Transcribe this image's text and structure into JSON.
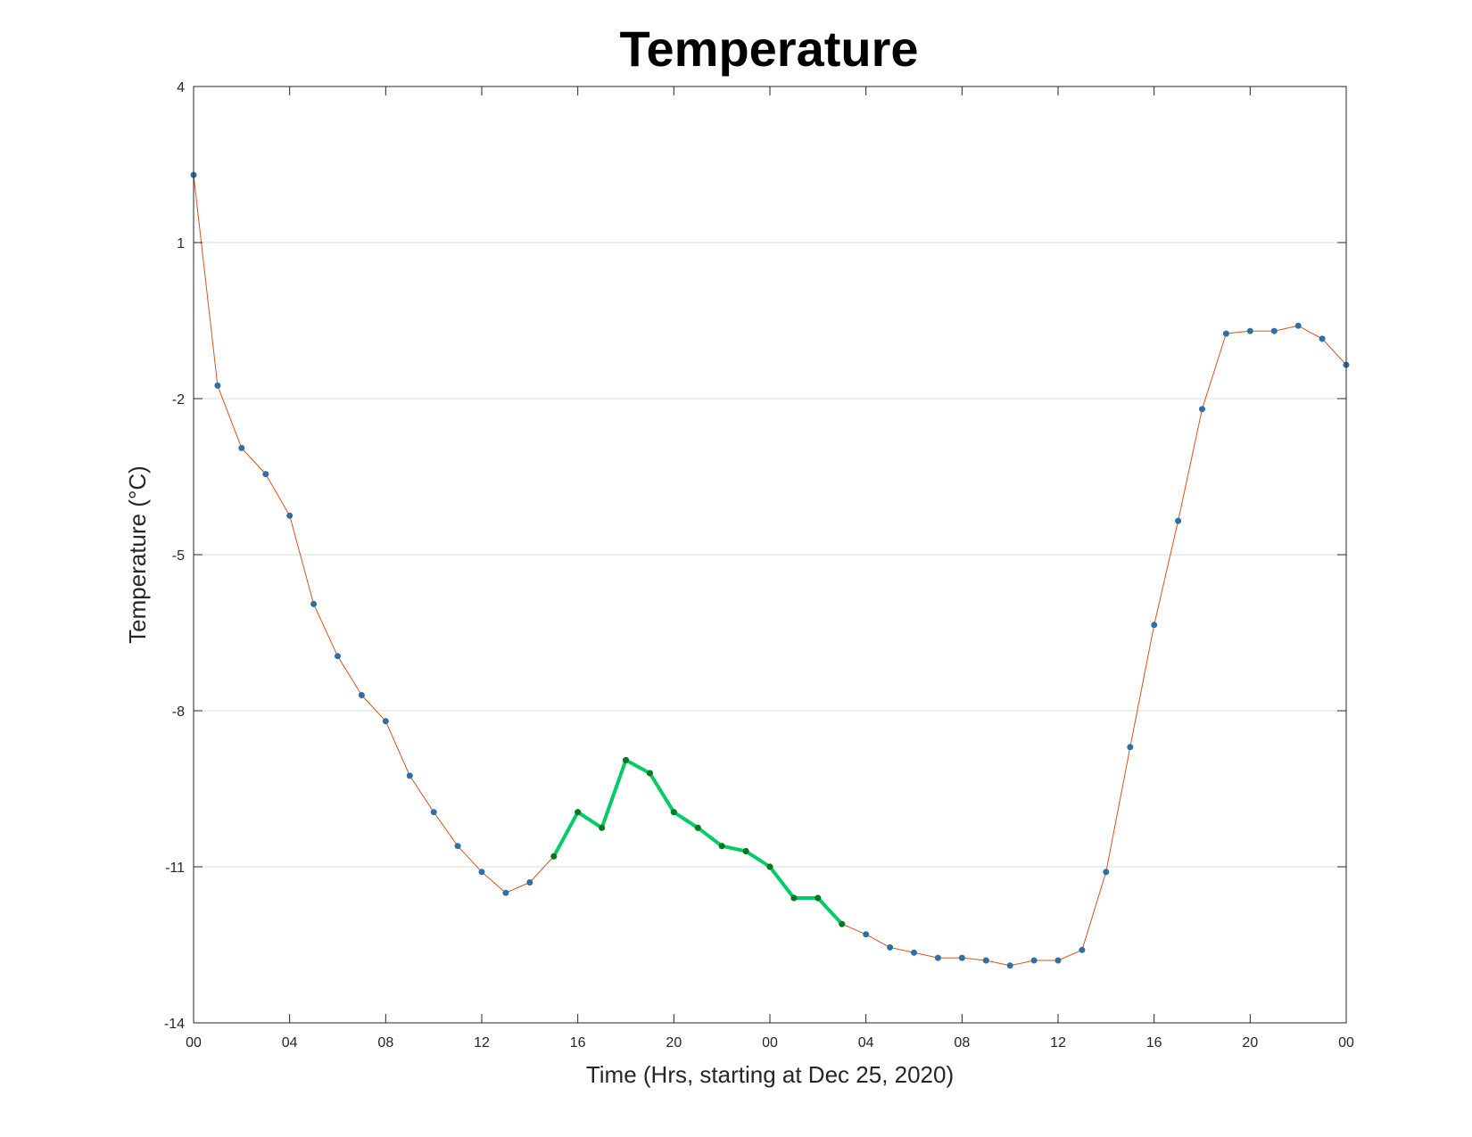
{
  "chart_data": {
    "type": "line",
    "title": "Temperature",
    "xlabel": "Time (Hrs, starting at Dec 25, 2020)",
    "ylabel": "Temperature (°C)",
    "ylim": [
      -14,
      4
    ],
    "yticks": [
      -14,
      -11,
      -8,
      -5,
      -2,
      1,
      4
    ],
    "xlim": [
      0,
      48
    ],
    "xticks": [
      0,
      4,
      8,
      12,
      16,
      20,
      24,
      28,
      32,
      36,
      40,
      44,
      48
    ],
    "xtick_labels": [
      "00",
      "04",
      "08",
      "12",
      "16",
      "20",
      "00",
      "04",
      "08",
      "12",
      "16",
      "20",
      "00"
    ],
    "grid": "horizontal",
    "x": [
      0,
      1,
      2,
      3,
      4,
      5,
      6,
      7,
      8,
      9,
      10,
      11,
      12,
      13,
      14,
      15,
      16,
      17,
      18,
      19,
      20,
      21,
      22,
      23,
      24,
      25,
      26,
      27,
      28,
      29,
      30,
      31,
      32,
      33,
      34,
      35,
      36,
      37,
      38,
      39,
      40,
      41,
      42,
      43,
      44,
      45,
      46,
      47,
      48
    ],
    "series": [
      {
        "style": "all-hours",
        "color": "#d95319",
        "marker_color": "#2e6fa7",
        "values": [
          2.3,
          -1.75,
          -2.95,
          -3.45,
          -4.25,
          -5.95,
          -6.95,
          -7.7,
          -8.2,
          -9.25,
          -9.95,
          -10.6,
          -11.1,
          -11.5,
          -11.3,
          -10.8,
          -9.95,
          -10.25,
          -8.95,
          -9.2,
          -9.95,
          -10.25,
          -10.6,
          -10.7,
          -11.0,
          -11.6,
          -11.6,
          -12.1,
          -12.3,
          -12.55,
          -12.65,
          -12.75,
          -12.75,
          -12.8,
          -12.9,
          -12.8,
          -12.8,
          -12.6,
          -11.1,
          -8.7,
          -6.35,
          -4.35,
          -2.2,
          -0.75,
          -0.7,
          -0.7,
          -0.6,
          -0.85,
          -1.35
        ]
      },
      {
        "style": "highlighted-window",
        "color": "#00cc66",
        "marker_color": "#007a1f",
        "x": [
          15,
          16,
          17,
          18,
          19,
          20,
          21,
          22,
          23,
          24,
          25,
          26,
          27
        ],
        "values": [
          -10.8,
          -9.95,
          -10.25,
          -8.95,
          -9.2,
          -9.95,
          -10.25,
          -10.6,
          -10.7,
          -11.0,
          -11.6,
          -11.6,
          -12.1
        ]
      }
    ]
  }
}
